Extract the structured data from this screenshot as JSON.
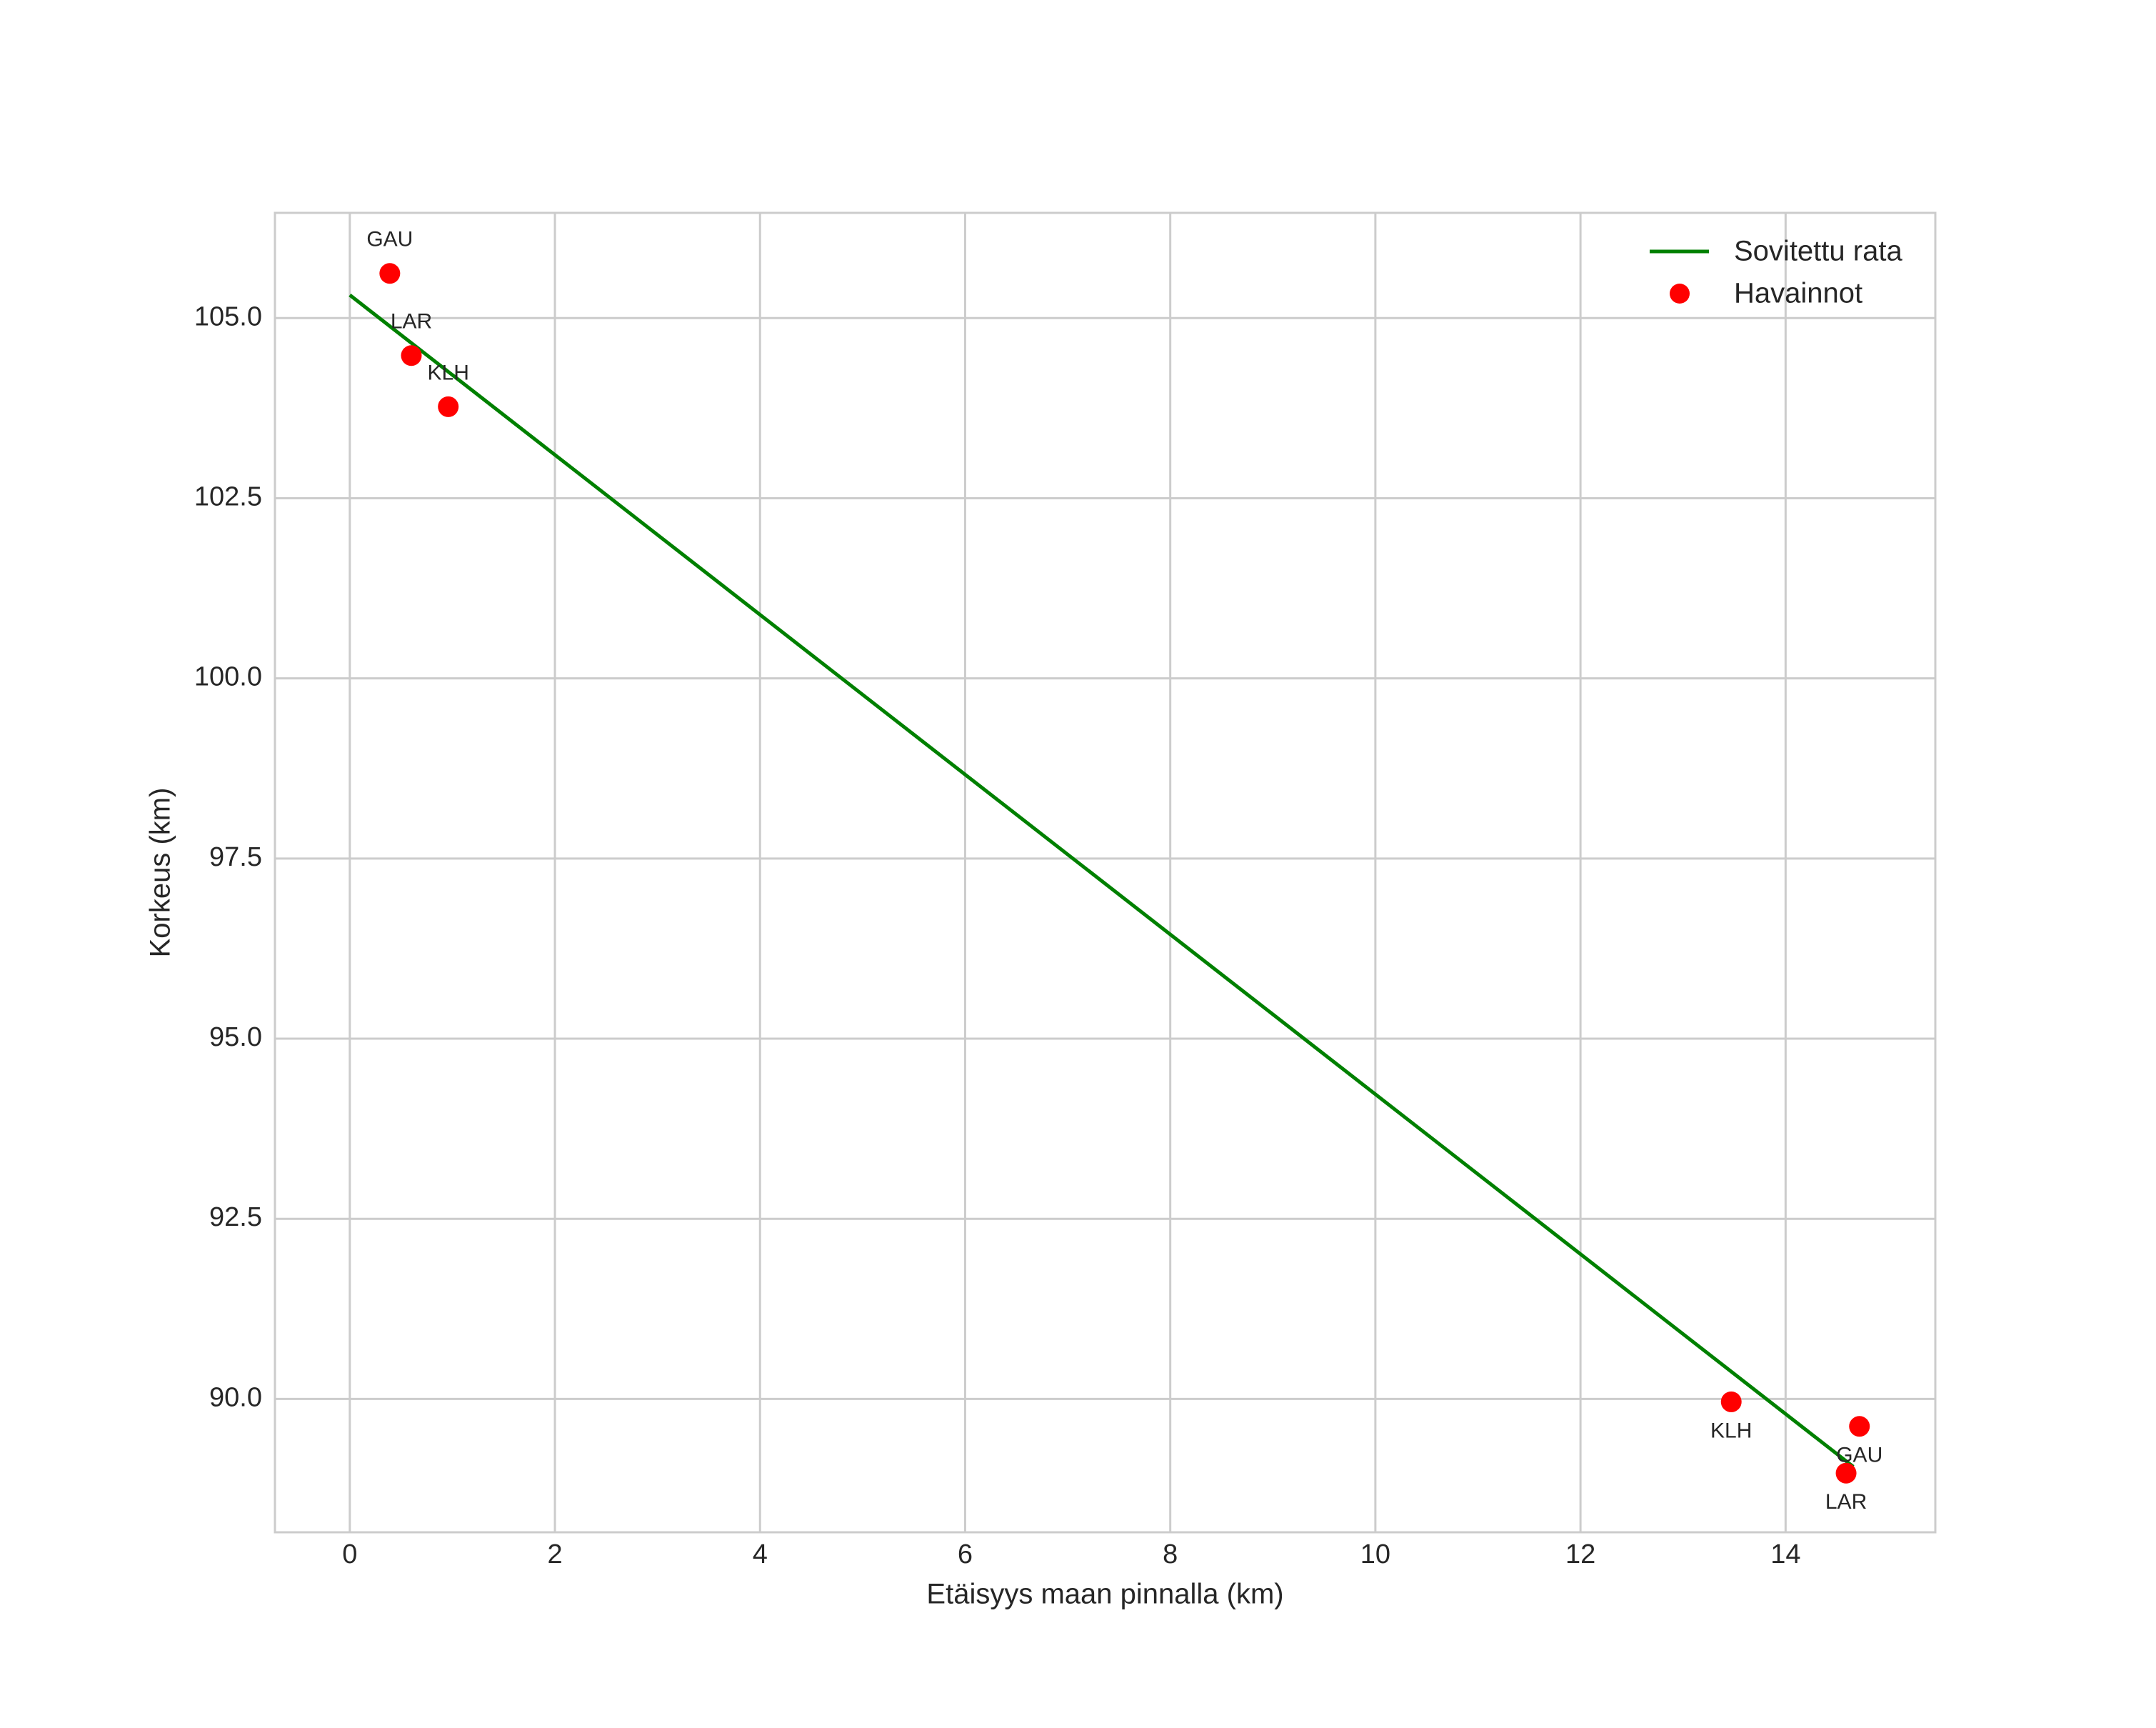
{
  "chart_data": {
    "type": "scatter",
    "title": "",
    "xlabel": "Etäisyys maan pinnalla (km)",
    "ylabel": "Korkeus (km)",
    "xlim": [
      -0.73,
      15.46
    ],
    "ylim": [
      88.15,
      106.46
    ],
    "grid": true,
    "legend_position": "upper right",
    "xticks": [
      0,
      2,
      4,
      6,
      8,
      10,
      12,
      14
    ],
    "xtick_labels": [
      "0",
      "2",
      "4",
      "6",
      "8",
      "10",
      "12",
      "14"
    ],
    "yticks": [
      90.0,
      92.5,
      95.0,
      97.5,
      100.0,
      102.5,
      105.0
    ],
    "ytick_labels": [
      "90.0",
      "92.5",
      "95.0",
      "97.5",
      "100.0",
      "102.5",
      "105.0"
    ],
    "series": [
      {
        "name": "Sovitettu rata",
        "type": "line",
        "color": "#008000",
        "x": [
          0.0,
          14.66
        ],
        "y": [
          105.32,
          89.06
        ]
      },
      {
        "name": "Havainnot",
        "type": "scatter",
        "color": "#ff0000",
        "points": [
          {
            "label": "GAU",
            "x": 0.39,
            "y": 105.62,
            "label_pos": "above"
          },
          {
            "label": "LAR",
            "x": 0.6,
            "y": 104.48,
            "label_pos": "above"
          },
          {
            "label": "KLH",
            "x": 0.96,
            "y": 103.77,
            "label_pos": "above"
          },
          {
            "label": "KLH",
            "x": 13.47,
            "y": 89.96,
            "label_pos": "below"
          },
          {
            "label": "GAU",
            "x": 14.72,
            "y": 89.62,
            "label_pos": "below"
          },
          {
            "label": "LAR",
            "x": 14.59,
            "y": 88.97,
            "label_pos": "below"
          }
        ]
      }
    ]
  },
  "legend": {
    "items": [
      {
        "label": "Sovitettu rata",
        "symbol": "line",
        "color": "#008000"
      },
      {
        "label": "Havainnot",
        "symbol": "circle",
        "color": "#ff0000"
      }
    ]
  },
  "colors": {
    "grid": "#cccccc",
    "frame": "#cccccc",
    "text": "#262626",
    "background": "#ffffff"
  }
}
